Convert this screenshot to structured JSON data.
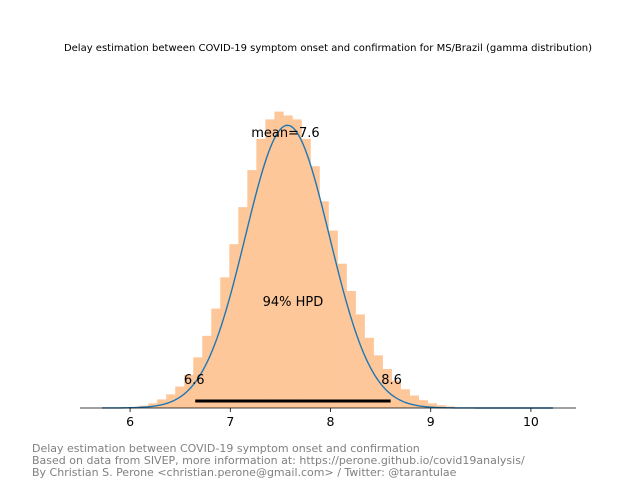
{
  "chart_data": {
    "type": "histogram-density",
    "title": "Delay estimation between COVID-19 symptom onset and confirmation for MS/Brazil (gamma distribution)",
    "xlabel": "",
    "ylabel": "",
    "xlim": [
      5.5,
      10.45
    ],
    "x_ticks": [
      6,
      7,
      8,
      9,
      10
    ],
    "x_tick_labels": [
      "6",
      "7",
      "8",
      "9",
      "10"
    ],
    "histogram": {
      "color": "#fdc79a",
      "bin_width": 0.09,
      "bins": [
        {
          "x0": 6.0,
          "density": 0.003
        },
        {
          "x0": 6.09,
          "density": 0.006
        },
        {
          "x0": 6.18,
          "density": 0.012
        },
        {
          "x0": 6.27,
          "density": 0.022
        },
        {
          "x0": 6.36,
          "density": 0.035
        },
        {
          "x0": 6.45,
          "density": 0.055
        },
        {
          "x0": 6.54,
          "density": 0.085
        },
        {
          "x0": 6.63,
          "density": 0.13
        },
        {
          "x0": 6.72,
          "density": 0.185
        },
        {
          "x0": 6.81,
          "density": 0.255
        },
        {
          "x0": 6.9,
          "density": 0.335
        },
        {
          "x0": 6.99,
          "density": 0.42
        },
        {
          "x0": 7.08,
          "density": 0.515
        },
        {
          "x0": 7.17,
          "density": 0.61
        },
        {
          "x0": 7.26,
          "density": 0.69
        },
        {
          "x0": 7.35,
          "density": 0.74
        },
        {
          "x0": 7.44,
          "density": 0.76
        },
        {
          "x0": 7.53,
          "density": 0.75
        },
        {
          "x0": 7.62,
          "density": 0.74
        },
        {
          "x0": 7.71,
          "density": 0.69
        },
        {
          "x0": 7.8,
          "density": 0.62
        },
        {
          "x0": 7.89,
          "density": 0.53
        },
        {
          "x0": 7.98,
          "density": 0.455
        },
        {
          "x0": 8.07,
          "density": 0.37
        },
        {
          "x0": 8.16,
          "density": 0.3
        },
        {
          "x0": 8.25,
          "density": 0.24
        },
        {
          "x0": 8.34,
          "density": 0.18
        },
        {
          "x0": 8.43,
          "density": 0.135
        },
        {
          "x0": 8.52,
          "density": 0.1
        },
        {
          "x0": 8.61,
          "density": 0.07
        },
        {
          "x0": 8.7,
          "density": 0.048
        },
        {
          "x0": 8.79,
          "density": 0.032
        },
        {
          "x0": 8.88,
          "density": 0.02
        },
        {
          "x0": 8.97,
          "density": 0.012
        },
        {
          "x0": 9.06,
          "density": 0.007
        },
        {
          "x0": 9.15,
          "density": 0.004
        }
      ]
    },
    "density_curve": {
      "color": "#1f77b4",
      "mean": 7.57,
      "sd": 0.42,
      "peak": 0.725,
      "x_range": [
        5.72,
        10.22
      ]
    },
    "annotations": {
      "mean_label": "mean=7.6",
      "hpd_label": "94% HPD",
      "hpd_low_label": "6.6",
      "hpd_high_label": "8.6",
      "hpd_interval": [
        6.65,
        8.6
      ]
    },
    "grid": false,
    "legend": "none"
  },
  "footer": {
    "line1": "Delay estimation between COVID-19 symptom onset and confirmation",
    "line2": "Based on data from SIVEP, more information at: https://perone.github.io/covid19analysis/",
    "line3": "By Christian S. Perone <christian.perone@gmail.com> / Twitter: @tarantulae"
  }
}
